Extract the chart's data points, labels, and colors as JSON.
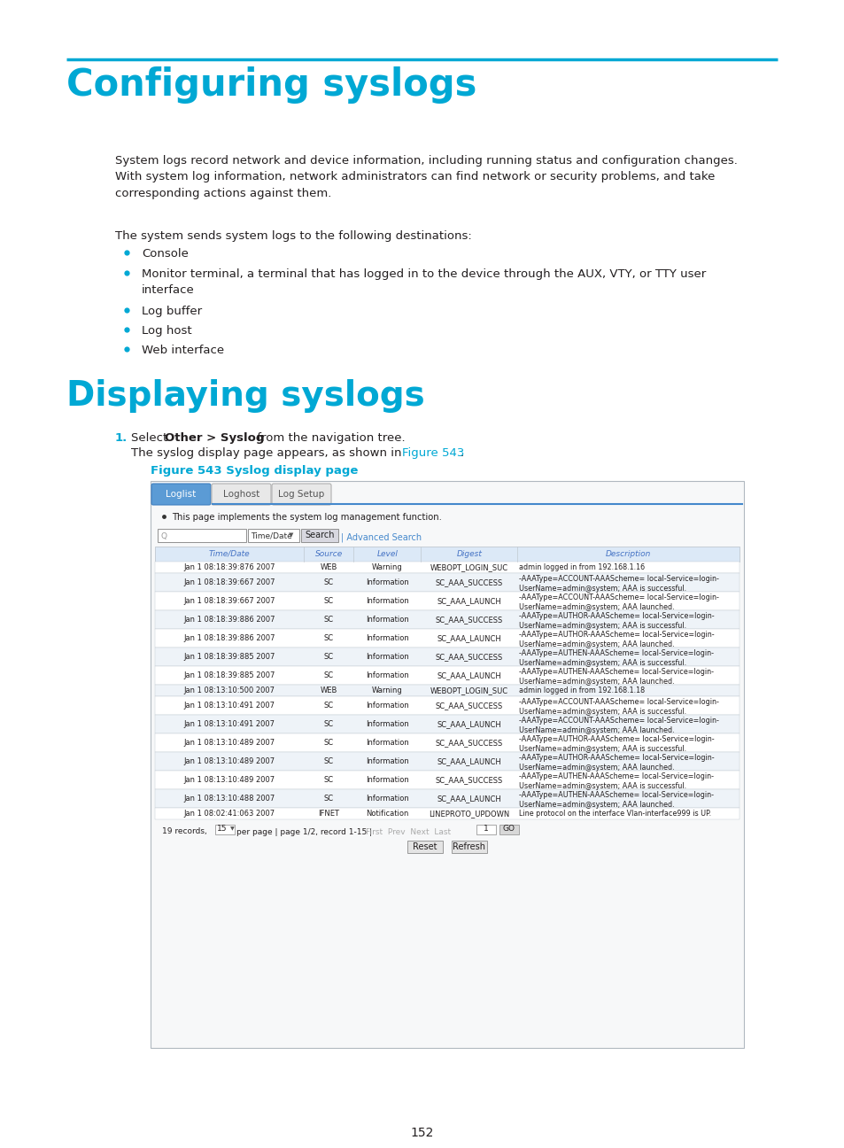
{
  "title1": "Configuring syslogs",
  "title2": "Displaying syslogs",
  "title_color": "#00a8d4",
  "line_color": "#00a8d4",
  "body_color": "#231f20",
  "para1": "System logs record network and device information, including running status and configuration changes.\nWith system log information, network administrators can find network or security problems, and take\ncorresponding actions against them.",
  "para2": "The system sends system logs to the following destinations:",
  "bullets": [
    "Console",
    "Monitor terminal, a terminal that has logged in to the device through the AUX, VTY, or TTY user\ninterface",
    "Log buffer",
    "Log host",
    "Web interface"
  ],
  "fig_label": "Figure 543 Syslog display page",
  "fig_label_color": "#00a8d4",
  "tab_labels": [
    "Loglist",
    "Loghost",
    "Log Setup"
  ],
  "tab_active_color": "#5b9bd5",
  "tab_inactive_color": "#e8e8e8",
  "tab_text_active": "#ffffff",
  "tab_text_inactive": "#555555",
  "table_header_bg": "#dce9f7",
  "table_header_text_color": "#4472c4",
  "table_alt_row_color": "#eef3f8",
  "table_row_color": "#ffffff",
  "table_border_color": "#c0c8d0",
  "table_headers": [
    "Time/Date",
    "Source",
    "Level",
    "Digest",
    "Description"
  ],
  "table_rows": [
    [
      "Jan 1 08:18:39:876 2007",
      "WEB",
      "Warning",
      "WEBOPT_LOGIN_SUC",
      "admin logged in from 192.168.1.16"
    ],
    [
      "Jan 1 08:18:39:667 2007",
      "SC",
      "Information",
      "SC_AAA_SUCCESS",
      "-AAAType=ACCOUNT-AAAScheme= local-Service=login-\nUserName=admin@system; AAA is successful."
    ],
    [
      "Jan 1 08:18:39:667 2007",
      "SC",
      "Information",
      "SC_AAA_LAUNCH",
      "-AAAType=ACCOUNT-AAAScheme= local-Service=login-\nUserName=admin@system; AAA launched."
    ],
    [
      "Jan 1 08:18:39:886 2007",
      "SC",
      "Information",
      "SC_AAA_SUCCESS",
      "-AAAType=AUTHOR-AAAScheme= local-Service=login-\nUserName=admin@system; AAA is successful."
    ],
    [
      "Jan 1 08:18:39:886 2007",
      "SC",
      "Information",
      "SC_AAA_LAUNCH",
      "-AAAType=AUTHOR-AAAScheme= local-Service=login-\nUserName=admin@system; AAA launched."
    ],
    [
      "Jan 1 08:18:39:885 2007",
      "SC",
      "Information",
      "SC_AAA_SUCCESS",
      "-AAAType=AUTHEN-AAAScheme= local-Service=login-\nUserName=admin@system; AAA is successful."
    ],
    [
      "Jan 1 08:18:39:885 2007",
      "SC",
      "Information",
      "SC_AAA_LAUNCH",
      "-AAAType=AUTHEN-AAAScheme= local-Service=login-\nUserName=admin@system; AAA launched."
    ],
    [
      "Jan 1 08:13:10:500 2007",
      "WEB",
      "Warning",
      "WEBOPT_LOGIN_SUC",
      "admin logged in from 192.168.1.18"
    ],
    [
      "Jan 1 08:13:10:491 2007",
      "SC",
      "Information",
      "SC_AAA_SUCCESS",
      "-AAAType=ACCOUNT-AAAScheme= local-Service=login-\nUserName=admin@system; AAA is successful."
    ],
    [
      "Jan 1 08:13:10:491 2007",
      "SC",
      "Information",
      "SC_AAA_LAUNCH",
      "-AAAType=ACCOUNT-AAAScheme= local-Service=login-\nUserName=admin@system; AAA launched."
    ],
    [
      "Jan 1 08:13:10:489 2007",
      "SC",
      "Information",
      "SC_AAA_SUCCESS",
      "-AAAType=AUTHOR-AAAScheme= local-Service=login-\nUserName=admin@system; AAA is successful."
    ],
    [
      "Jan 1 08:13:10:489 2007",
      "SC",
      "Information",
      "SC_AAA_LAUNCH",
      "-AAAType=AUTHOR-AAAScheme= local-Service=login-\nUserName=admin@system; AAA launched."
    ],
    [
      "Jan 1 08:13:10:489 2007",
      "SC",
      "Information",
      "SC_AAA_SUCCESS",
      "-AAAType=AUTHEN-AAAScheme= local-Service=login-\nUserName=admin@system; AAA is successful."
    ],
    [
      "Jan 1 08:13:10:488 2007",
      "SC",
      "Information",
      "SC_AAA_LAUNCH",
      "-AAAType=AUTHEN-AAAScheme= local-Service=login-\nUserName=admin@system; AAA launched."
    ],
    [
      "Jan 1 08:02:41:063 2007",
      "IFNET",
      "Notification",
      "LINEPROTO_UPDOWN",
      "Line protocol on the interface Vlan-interface999 is UP."
    ]
  ],
  "reset_btn": "Reset",
  "refresh_btn": "Refresh",
  "page_number": "152",
  "background_color": "#ffffff"
}
